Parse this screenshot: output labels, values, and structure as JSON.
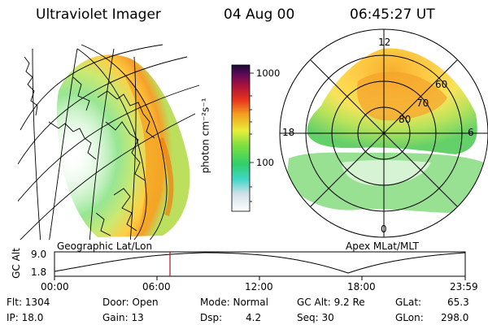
{
  "header": {
    "instrument": "Ultraviolet Imager",
    "date": "04 Aug 00",
    "time": "06:45:27 UT"
  },
  "left_panel": {
    "label": "Geographic Lat/Lon"
  },
  "right_panel": {
    "label": "Apex MLat/MLT",
    "mlt_labels": [
      "12",
      "18",
      "6",
      "0"
    ],
    "lat_labels": [
      "60",
      "70",
      "80"
    ]
  },
  "colorbar": {
    "label": "photon cm⁻²s⁻¹",
    "ticks": [
      {
        "value": 1000,
        "label": "1000"
      },
      {
        "value": 100,
        "label": "100"
      }
    ],
    "scale": "log"
  },
  "altitude_plot": {
    "ylabel": "GC Alt",
    "y_ticks": [
      "9.0",
      "1.8"
    ],
    "x_ticks": [
      "00:00",
      "06:00",
      "12:00",
      "18:00",
      "23:59"
    ],
    "marker_time": "06:45",
    "marker_color": "#b0122a"
  },
  "status": {
    "flt": "Flt: 1304",
    "ip": "IP: 18.0",
    "door": "Door: Open",
    "gain": "Gain: 13",
    "mode": "Mode: Normal",
    "dsp": "Dsp:",
    "dsp_value": "4.2",
    "gc_alt": "GC Alt: 9.2 Re",
    "seq": "Seq: 30",
    "glat": "GLat:",
    "glat_value": "65.3",
    "glon": "GLon:",
    "glon_value": "298.0"
  }
}
